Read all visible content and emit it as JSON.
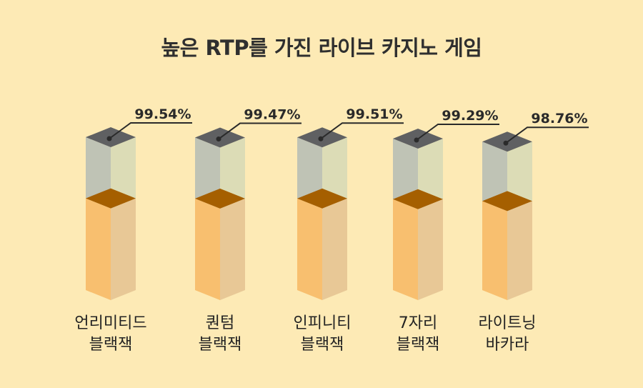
{
  "chart_data": {
    "type": "bar",
    "title": "높은 RTP를 가진 라이브 카지노 게임",
    "categories": [
      [
        "언리미티드",
        "블랙잭"
      ],
      [
        "퀀텀",
        "블랙잭"
      ],
      [
        "인피니티",
        "블랙잭"
      ],
      [
        "7자리",
        "블랙잭"
      ],
      [
        "라이트닝",
        "바카라"
      ]
    ],
    "values": [
      99.54,
      99.47,
      99.51,
      99.29,
      98.76
    ],
    "value_labels": [
      "99.54%",
      "99.47%",
      "99.51%",
      "99.29%",
      "98.76%"
    ],
    "fill_fraction": 0.6,
    "colors": {
      "background": "#fdeab5",
      "bar_front": "#f8bf6f",
      "bar_side": "#e8c896",
      "bar_mid_top": "#a55f00",
      "glass_front": "#bfc3b5",
      "glass_side": "#dcdcb6",
      "cap": "#5f6062",
      "leader": "#2a2a2a"
    }
  }
}
